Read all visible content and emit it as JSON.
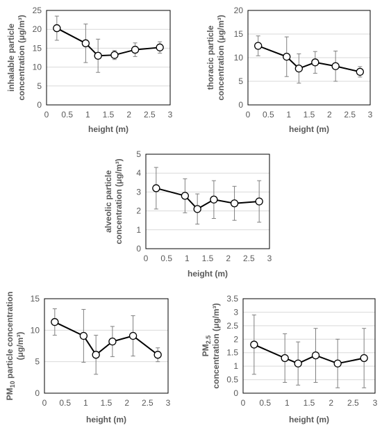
{
  "chart_data": [
    {
      "type": "scatter",
      "xlabel": "height (m)",
      "ylabel": [
        "inhalable particle",
        "concentration (μg/m³)"
      ],
      "xlim": [
        0,
        3
      ],
      "ylim": [
        0,
        25
      ],
      "xticks": [
        "0",
        "0.5",
        "1",
        "1.5",
        "2",
        "2.5",
        "3"
      ],
      "yticks": [
        "0",
        "5",
        "10",
        "15",
        "20",
        "25"
      ],
      "grid": true,
      "x": [
        0.25,
        0.95,
        1.25,
        1.65,
        2.15,
        2.75
      ],
      "y": [
        20.3,
        16.3,
        13.0,
        13.2,
        14.6,
        15.2
      ],
      "yerr": [
        3.2,
        5.1,
        4.4,
        1.2,
        1.8,
        1.5
      ]
    },
    {
      "type": "scatter",
      "xlabel": "height (m)",
      "ylabel": [
        "thoracic particle",
        "concentration (μg/m³)"
      ],
      "xlim": [
        0,
        3
      ],
      "ylim": [
        0,
        20
      ],
      "xticks": [
        "0",
        "0.5",
        "1",
        "1.5",
        "2",
        "2.5",
        "3"
      ],
      "yticks": [
        "0",
        "5",
        "10",
        "15",
        "20"
      ],
      "grid": true,
      "x": [
        0.25,
        0.95,
        1.25,
        1.65,
        2.15,
        2.75
      ],
      "y": [
        12.5,
        10.2,
        7.7,
        9.0,
        8.2,
        7.0
      ],
      "yerr": [
        2.1,
        4.2,
        3.1,
        2.3,
        3.2,
        1.1
      ]
    },
    {
      "type": "scatter",
      "xlabel": "height (m)",
      "ylabel": [
        "alveolic particle",
        "concentration (μg/m³)"
      ],
      "xlim": [
        0,
        3
      ],
      "ylim": [
        0,
        5
      ],
      "xticks": [
        "0",
        "0.5",
        "1",
        "1.5",
        "2",
        "2.5",
        "3"
      ],
      "yticks": [
        "0",
        "1",
        "2",
        "3",
        "4",
        "5"
      ],
      "grid": true,
      "x": [
        0.25,
        0.95,
        1.25,
        1.65,
        2.15,
        2.75
      ],
      "y": [
        3.2,
        2.8,
        2.1,
        2.6,
        2.4,
        2.5
      ],
      "yerr": [
        1.1,
        0.9,
        0.8,
        1.0,
        0.9,
        1.1
      ]
    },
    {
      "type": "scatter",
      "xlabel": "height (m)",
      "ylabel": [
        "PM10 particle concentration",
        "(μg/m³)"
      ],
      "xlim": [
        0,
        3
      ],
      "ylim": [
        0,
        15
      ],
      "xticks": [
        "0",
        "0.5",
        "1",
        "1.5",
        "2",
        "2.5",
        "3"
      ],
      "yticks": [
        "0",
        "5",
        "10",
        "15"
      ],
      "grid": true,
      "x": [
        0.25,
        0.95,
        1.25,
        1.65,
        2.15,
        2.75
      ],
      "y": [
        11.3,
        9.1,
        6.1,
        8.2,
        9.1,
        6.1
      ],
      "yerr": [
        2.1,
        4.2,
        3.1,
        2.4,
        3.2,
        1.1
      ]
    },
    {
      "type": "scatter",
      "xlabel": "height (m)",
      "ylabel": [
        "PM2.5",
        "concentration (μg/m³)"
      ],
      "xlim": [
        0,
        3
      ],
      "ylim": [
        0,
        3.5
      ],
      "xticks": [
        "0",
        "0.5",
        "1",
        "1.5",
        "2",
        "2.5",
        "3"
      ],
      "yticks": [
        "0",
        "0.5",
        "1",
        "1.5",
        "2",
        "2.5",
        "3",
        "3.5"
      ],
      "grid": true,
      "x": [
        0.25,
        0.95,
        1.25,
        1.65,
        2.15,
        2.75
      ],
      "y": [
        1.8,
        1.3,
        1.1,
        1.4,
        1.1,
        1.3
      ],
      "yerr": [
        1.1,
        0.9,
        0.8,
        1.0,
        0.9,
        1.1
      ]
    }
  ]
}
